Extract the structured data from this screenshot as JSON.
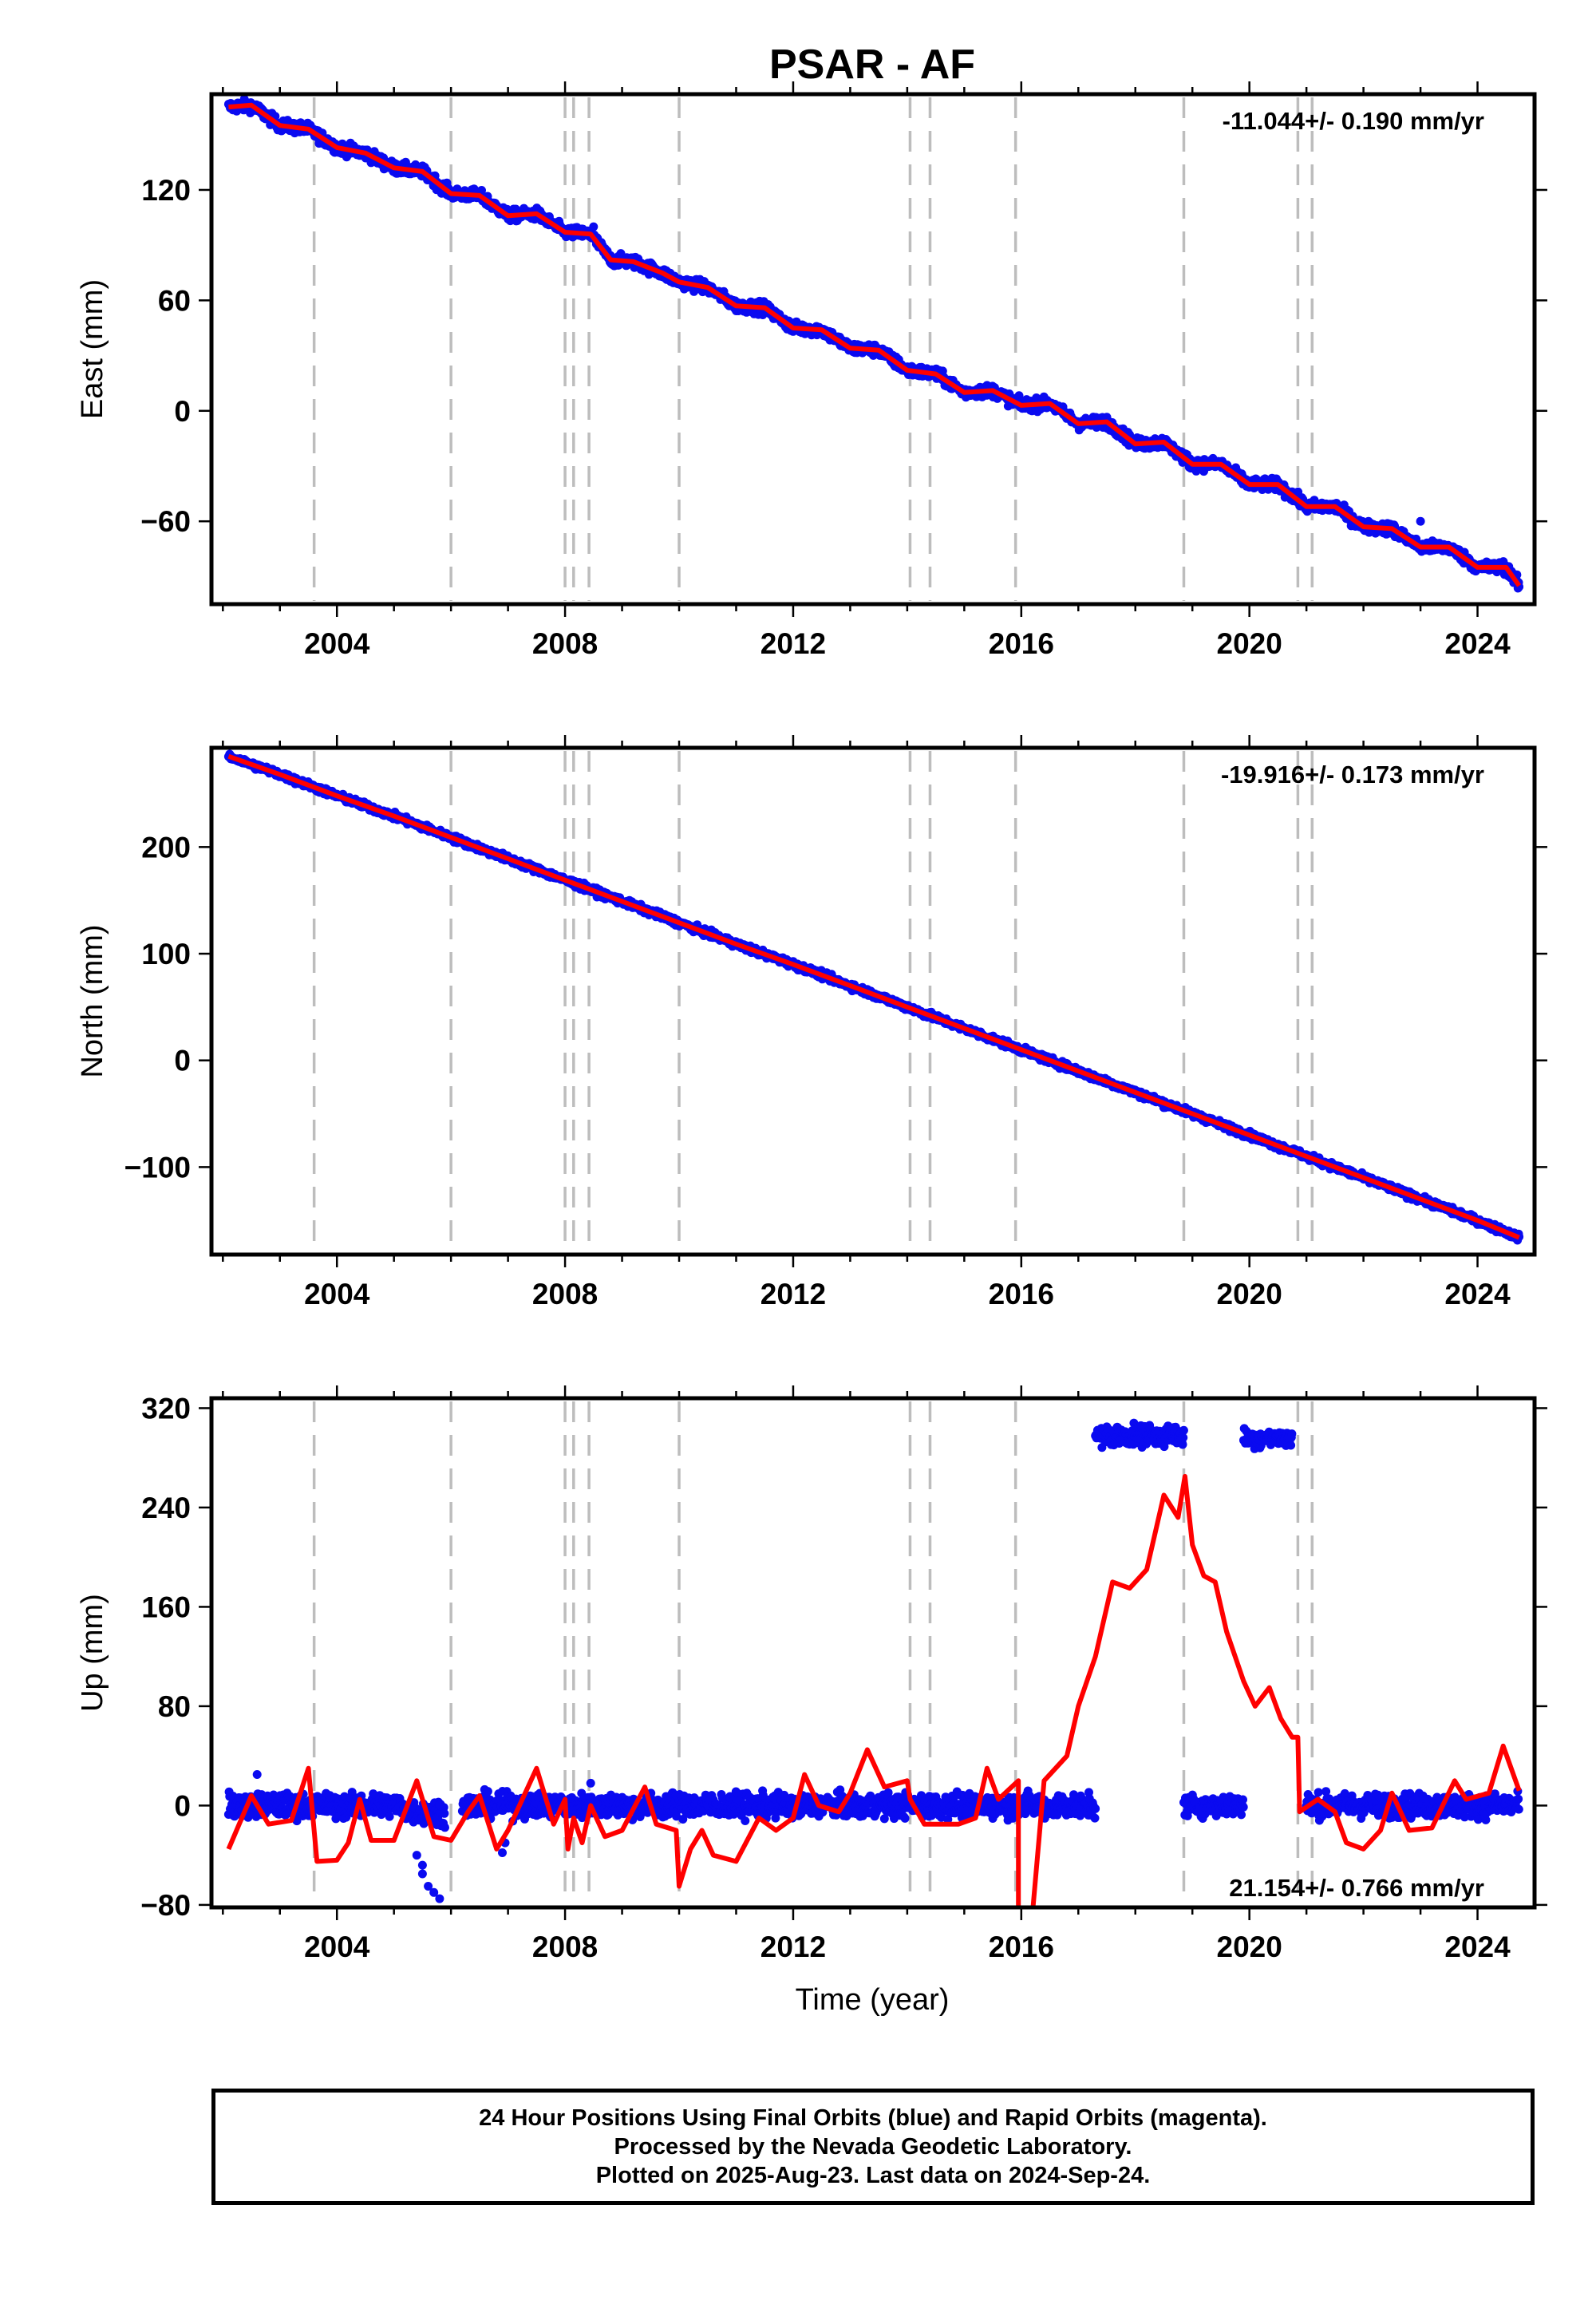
{
  "title": "PSAR - AF",
  "xlabel": "Time (year)",
  "colors": {
    "points": "#0a0af0",
    "model": "#ff0000",
    "gridline": "#bdbdbd",
    "frame": "#000000"
  },
  "footer": {
    "line1": "24 Hour Positions Using Final Orbits (blue) and Rapid Orbits (magenta).",
    "line2": "Processed by the Nevada Geodetic Laboratory.",
    "line3": "Plotted on 2025-Aug-23. Last data on 2024-Sep-24."
  },
  "chart_data": [
    {
      "type": "scatter",
      "component": "East",
      "ylabel": "East (mm)",
      "xlim": [
        2001.8,
        2025.0
      ],
      "ylim": [
        -105,
        172
      ],
      "xticks": [
        2004,
        2008,
        2012,
        2016,
        2020,
        2024
      ],
      "yticks": [
        -60,
        0,
        60,
        120
      ],
      "rate_label": "-11.044+/- 0.190 mm/yr",
      "rate_position": "top-right",
      "equipment_changes": [
        2003.6,
        2006.0,
        2008.0,
        2008.15,
        2008.42,
        2010.0,
        2014.05,
        2014.4,
        2015.9,
        2018.85,
        2020.85,
        2021.1
      ],
      "points": {
        "start": 2002.1,
        "end": 2024.73,
        "slope": -11.044,
        "anchor_year": 2002.1,
        "anchor_value": 166,
        "scatter": 3,
        "outliers": [
          [
            2023.0,
            -60
          ],
          [
            2008.5,
            100
          ]
        ]
      },
      "model": [
        [
          2002.1,
          165
        ],
        [
          2002.5,
          166
        ],
        [
          2003.0,
          155
        ],
        [
          2003.5,
          153
        ],
        [
          2004.0,
          143
        ],
        [
          2004.5,
          140
        ],
        [
          2005.0,
          132
        ],
        [
          2005.5,
          130
        ],
        [
          2006.0,
          118
        ],
        [
          2006.5,
          117
        ],
        [
          2007.0,
          106
        ],
        [
          2007.5,
          107
        ],
        [
          2008.0,
          97
        ],
        [
          2008.45,
          96
        ],
        [
          2008.8,
          82
        ],
        [
          2009.2,
          81
        ],
        [
          2009.7,
          75
        ],
        [
          2010.0,
          70
        ],
        [
          2010.5,
          67
        ],
        [
          2011.0,
          57
        ],
        [
          2011.5,
          56
        ],
        [
          2012.0,
          45
        ],
        [
          2012.5,
          44
        ],
        [
          2013.0,
          34
        ],
        [
          2013.5,
          33
        ],
        [
          2014.0,
          22
        ],
        [
          2014.5,
          20
        ],
        [
          2015.0,
          10
        ],
        [
          2015.5,
          11
        ],
        [
          2016.0,
          3
        ],
        [
          2016.5,
          4
        ],
        [
          2017.0,
          -7
        ],
        [
          2017.5,
          -6
        ],
        [
          2018.0,
          -18
        ],
        [
          2018.5,
          -17
        ],
        [
          2019.0,
          -29
        ],
        [
          2019.5,
          -29
        ],
        [
          2020.0,
          -40
        ],
        [
          2020.5,
          -40
        ],
        [
          2021.0,
          -52
        ],
        [
          2021.5,
          -52
        ],
        [
          2022.0,
          -63
        ],
        [
          2022.5,
          -64
        ],
        [
          2023.0,
          -74
        ],
        [
          2023.5,
          -74
        ],
        [
          2024.0,
          -85
        ],
        [
          2024.5,
          -85
        ],
        [
          2024.73,
          -95
        ]
      ]
    },
    {
      "type": "scatter",
      "component": "North",
      "ylabel": "North (mm)",
      "xlim": [
        2001.8,
        2025.0
      ],
      "ylim": [
        -182,
        293
      ],
      "xticks": [
        2004,
        2008,
        2012,
        2016,
        2020,
        2024
      ],
      "yticks": [
        -100,
        0,
        100,
        200
      ],
      "rate_label": "-19.916+/- 0.173 mm/yr",
      "rate_position": "top-right",
      "equipment_changes": [
        2003.6,
        2006.0,
        2008.0,
        2008.15,
        2008.42,
        2010.0,
        2014.05,
        2014.4,
        2015.9,
        2018.85,
        2020.85,
        2021.1
      ],
      "points": {
        "start": 2002.1,
        "end": 2024.73,
        "slope": -19.916,
        "anchor_year": 2002.1,
        "anchor_value": 285,
        "scatter": 3,
        "outliers": []
      },
      "model": [
        [
          2002.1,
          285
        ],
        [
          2003.0,
          268
        ],
        [
          2004.0,
          248
        ],
        [
          2005.0,
          229
        ],
        [
          2006.0,
          209
        ],
        [
          2007.0,
          189
        ],
        [
          2008.0,
          169
        ],
        [
          2009.0,
          149
        ],
        [
          2010.0,
          129
        ],
        [
          2011.0,
          109
        ],
        [
          2012.0,
          90
        ],
        [
          2013.0,
          70
        ],
        [
          2014.0,
          50
        ],
        [
          2015.0,
          30
        ],
        [
          2016.0,
          10
        ],
        [
          2017.0,
          -10
        ],
        [
          2018.0,
          -30
        ],
        [
          2019.0,
          -50
        ],
        [
          2020.0,
          -70
        ],
        [
          2021.0,
          -90
        ],
        [
          2022.0,
          -110
        ],
        [
          2023.0,
          -130
        ],
        [
          2024.0,
          -150
        ],
        [
          2024.73,
          -166
        ]
      ]
    },
    {
      "type": "scatter",
      "component": "Up",
      "ylabel": "Up (mm)",
      "xlim": [
        2001.8,
        2025.0
      ],
      "ylim": [
        -82,
        328
      ],
      "xticks": [
        2004,
        2008,
        2012,
        2016,
        2020,
        2024
      ],
      "yticks": [
        -80,
        0,
        80,
        160,
        240,
        320
      ],
      "rate_label": "21.154+/- 0.766 mm/yr",
      "rate_position": "bottom-right",
      "equipment_changes": [
        2003.6,
        2006.0,
        2008.0,
        2008.15,
        2008.42,
        2010.0,
        2014.05,
        2014.4,
        2015.9,
        2018.85,
        2020.85,
        2021.1
      ],
      "points": {
        "segments": [
          {
            "start": 2002.1,
            "end": 2005.2,
            "center": 0,
            "scatter": 9
          },
          {
            "start": 2005.2,
            "end": 2005.9,
            "center": -5,
            "scatter": 9
          },
          {
            "start": 2006.2,
            "end": 2016.9,
            "center": 0,
            "scatter": 9
          },
          {
            "start": 2016.9,
            "end": 2017.3,
            "center": 0,
            "scatter": 9
          },
          {
            "start": 2017.3,
            "end": 2018.85,
            "center": 298,
            "scatter": 8
          },
          {
            "start": 2018.85,
            "end": 2019.9,
            "center": 0,
            "scatter": 8
          },
          {
            "start": 2019.9,
            "end": 2020.75,
            "center": 296,
            "scatter": 7
          },
          {
            "start": 2021.0,
            "end": 2024.73,
            "center": 0,
            "scatter": 9
          }
        ],
        "outliers": [
          [
            2005.4,
            -40
          ],
          [
            2005.5,
            -55
          ],
          [
            2005.6,
            -65
          ],
          [
            2005.7,
            -70
          ],
          [
            2005.8,
            -75
          ],
          [
            2005.5,
            -48
          ],
          [
            2006.9,
            -38
          ],
          [
            2006.95,
            -30
          ],
          [
            2002.6,
            25
          ],
          [
            2008.45,
            18
          ]
        ]
      },
      "model": [
        [
          2002.1,
          -35
        ],
        [
          2002.5,
          8
        ],
        [
          2002.8,
          -15
        ],
        [
          2003.2,
          -12
        ],
        [
          2003.5,
          30
        ],
        [
          2003.65,
          -45
        ],
        [
          2004.0,
          -44
        ],
        [
          2004.2,
          -30
        ],
        [
          2004.4,
          5
        ],
        [
          2004.6,
          -28
        ],
        [
          2005.0,
          -28
        ],
        [
          2005.4,
          20
        ],
        [
          2005.7,
          -25
        ],
        [
          2006.0,
          -28
        ],
        [
          2006.3,
          -5
        ],
        [
          2006.5,
          8
        ],
        [
          2006.8,
          -35
        ],
        [
          2007.0,
          -20
        ],
        [
          2007.5,
          30
        ],
        [
          2007.8,
          -15
        ],
        [
          2008.0,
          5
        ],
        [
          2008.05,
          -35
        ],
        [
          2008.15,
          -10
        ],
        [
          2008.3,
          -30
        ],
        [
          2008.45,
          0
        ],
        [
          2008.7,
          -25
        ],
        [
          2009.0,
          -20
        ],
        [
          2009.4,
          15
        ],
        [
          2009.6,
          -15
        ],
        [
          2009.95,
          -20
        ],
        [
          2010.0,
          -65
        ],
        [
          2010.2,
          -35
        ],
        [
          2010.4,
          -20
        ],
        [
          2010.6,
          -40
        ],
        [
          2011.0,
          -45
        ],
        [
          2011.4,
          -10
        ],
        [
          2011.7,
          -20
        ],
        [
          2012.0,
          -10
        ],
        [
          2012.2,
          25
        ],
        [
          2012.45,
          0
        ],
        [
          2012.8,
          -5
        ],
        [
          2013.0,
          10
        ],
        [
          2013.3,
          45
        ],
        [
          2013.6,
          15
        ],
        [
          2014.0,
          20
        ],
        [
          2014.05,
          5
        ],
        [
          2014.3,
          -15
        ],
        [
          2014.6,
          -15
        ],
        [
          2014.9,
          -15
        ],
        [
          2015.2,
          -10
        ],
        [
          2015.4,
          30
        ],
        [
          2015.6,
          5
        ],
        [
          2015.95,
          20
        ],
        [
          2015.95,
          -85
        ],
        [
          2016.2,
          -85
        ],
        [
          2016.4,
          20
        ],
        [
          2016.8,
          40
        ],
        [
          2017.0,
          80
        ],
        [
          2017.3,
          120
        ],
        [
          2017.6,
          180
        ],
        [
          2017.9,
          175
        ],
        [
          2018.2,
          190
        ],
        [
          2018.5,
          250
        ],
        [
          2018.75,
          232
        ],
        [
          2018.87,
          265
        ],
        [
          2019.0,
          210
        ],
        [
          2019.2,
          185
        ],
        [
          2019.4,
          180
        ],
        [
          2019.6,
          140
        ],
        [
          2019.9,
          100
        ],
        [
          2020.1,
          80
        ],
        [
          2020.35,
          95
        ],
        [
          2020.55,
          70
        ],
        [
          2020.75,
          55
        ],
        [
          2020.85,
          55
        ],
        [
          2020.88,
          -5
        ],
        [
          2021.2,
          5
        ],
        [
          2021.5,
          -5
        ],
        [
          2021.7,
          -30
        ],
        [
          2022.0,
          -35
        ],
        [
          2022.3,
          -20
        ],
        [
          2022.5,
          10
        ],
        [
          2022.8,
          -20
        ],
        [
          2023.2,
          -18
        ],
        [
          2023.6,
          20
        ],
        [
          2023.8,
          5
        ],
        [
          2024.2,
          10
        ],
        [
          2024.45,
          48
        ],
        [
          2024.73,
          12
        ]
      ]
    }
  ]
}
